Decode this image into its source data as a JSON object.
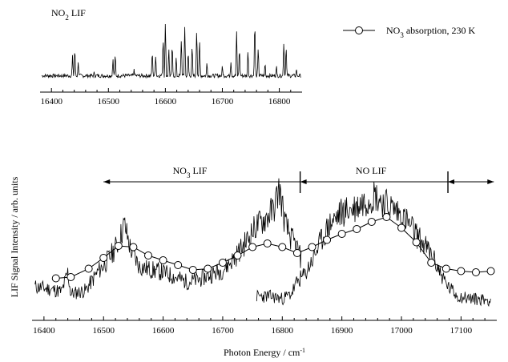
{
  "chart_data": [
    {
      "type": "line",
      "title": "",
      "panel_label_main": "NO",
      "panel_label_sub": "2",
      "panel_label_rest": " LIF",
      "xlim": [
        16380,
        16840
      ],
      "x_ticks": [
        16400,
        16500,
        16600,
        16700,
        16800
      ],
      "ylim": [
        0,
        1
      ],
      "grid": false,
      "series": [
        {
          "name": "",
          "peaks": [
            [
              16413,
              0.1
            ],
            [
              16437,
              0.4
            ],
            [
              16441,
              0.55
            ],
            [
              16447,
              0.3
            ],
            [
              16475,
              0.15
            ],
            [
              16508,
              0.35
            ],
            [
              16512,
              0.45
            ],
            [
              16545,
              0.18
            ],
            [
              16577,
              0.5
            ],
            [
              16583,
              0.42
            ],
            [
              16596,
              0.72
            ],
            [
              16600,
              0.95
            ],
            [
              16606,
              0.55
            ],
            [
              16612,
              0.62
            ],
            [
              16619,
              0.4
            ],
            [
              16628,
              0.7
            ],
            [
              16634,
              0.9
            ],
            [
              16640,
              0.5
            ],
            [
              16647,
              0.6
            ],
            [
              16655,
              0.85
            ],
            [
              16660,
              0.68
            ],
            [
              16673,
              0.3
            ],
            [
              16700,
              0.25
            ],
            [
              16715,
              0.3
            ],
            [
              16725,
              0.78
            ],
            [
              16730,
              0.55
            ],
            [
              16745,
              0.5
            ],
            [
              16757,
              1.0
            ],
            [
              16763,
              0.55
            ],
            [
              16775,
              0.3
            ],
            [
              16795,
              0.25
            ],
            [
              16808,
              0.65
            ],
            [
              16812,
              0.58
            ],
            [
              16830,
              0.2
            ]
          ]
        }
      ]
    },
    {
      "type": "line",
      "title": "",
      "xlabel": "Photon Energy / cm",
      "xlabel_sup": "-1",
      "ylabel": "LIF Signal Intensity / arb. units",
      "xlim": [
        16380,
        17160
      ],
      "x_ticks": [
        16400,
        16500,
        16600,
        16700,
        16800,
        16900,
        17000,
        17100
      ],
      "ylim": [
        0,
        1
      ],
      "grid": false,
      "legend": {
        "position": "top-right",
        "label_main": "NO",
        "label_sub": "3",
        "label_rest": " absorption, 230 K"
      },
      "annotations": {
        "no3_lif_main": "NO",
        "no3_lif_sub": "3",
        "no3_lif_rest": " LIF",
        "no3_lif_range": [
          16500,
          16830
        ],
        "no_lif": "NO LIF",
        "no_lif_range": [
          16830,
          17078
        ],
        "third_range": [
          17078,
          17155
        ]
      },
      "series": [
        {
          "name": "",
          "points": [
            [
              16385,
              0.18
            ],
            [
              16410,
              0.16
            ],
            [
              16430,
              0.14
            ],
            [
              16440,
              0.3
            ],
            [
              16445,
              0.12
            ],
            [
              16470,
              0.15
            ],
            [
              16490,
              0.3
            ],
            [
              16510,
              0.42
            ],
            [
              16525,
              0.55
            ],
            [
              16535,
              0.7
            ],
            [
              16545,
              0.5
            ],
            [
              16560,
              0.35
            ],
            [
              16580,
              0.32
            ],
            [
              16600,
              0.3
            ],
            [
              16620,
              0.26
            ],
            [
              16640,
              0.22
            ],
            [
              16660,
              0.24
            ],
            [
              16680,
              0.28
            ],
            [
              16700,
              0.32
            ],
            [
              16720,
              0.42
            ],
            [
              16740,
              0.56
            ],
            [
              16755,
              0.68
            ],
            [
              16770,
              0.74
            ],
            [
              16785,
              0.82
            ],
            [
              16795,
              1.0
            ],
            [
              16805,
              0.7
            ],
            [
              16815,
              0.58
            ],
            [
              16825,
              0.5
            ],
            [
              16832,
              0.4
            ]
          ]
        },
        {
          "name": "",
          "points": [
            [
              16757,
              0.1
            ],
            [
              16780,
              0.1
            ],
            [
              16800,
              0.08
            ],
            [
              16815,
              0.12
            ],
            [
              16825,
              0.22
            ],
            [
              16838,
              0.28
            ],
            [
              16850,
              0.4
            ],
            [
              16865,
              0.56
            ],
            [
              16880,
              0.7
            ],
            [
              16900,
              0.8
            ],
            [
              16920,
              0.83
            ],
            [
              16940,
              0.9
            ],
            [
              16955,
              0.95
            ],
            [
              16970,
              0.88
            ],
            [
              16990,
              0.82
            ],
            [
              17010,
              0.72
            ],
            [
              17030,
              0.58
            ],
            [
              17050,
              0.45
            ],
            [
              17065,
              0.3
            ],
            [
              17078,
              0.18
            ],
            [
              17095,
              0.1
            ],
            [
              17120,
              0.08
            ],
            [
              17150,
              0.07
            ]
          ]
        },
        {
          "name": "NO3 absorption, 230 K",
          "points": [
            [
              16420,
              0.25
            ],
            [
              16445,
              0.26
            ],
            [
              16475,
              0.33
            ],
            [
              16500,
              0.42
            ],
            [
              16525,
              0.52
            ],
            [
              16550,
              0.51
            ],
            [
              16575,
              0.44
            ],
            [
              16600,
              0.4
            ],
            [
              16625,
              0.36
            ],
            [
              16650,
              0.32
            ],
            [
              16675,
              0.33
            ],
            [
              16700,
              0.38
            ],
            [
              16725,
              0.44
            ],
            [
              16750,
              0.51
            ],
            [
              16775,
              0.54
            ],
            [
              16800,
              0.51
            ],
            [
              16825,
              0.46
            ],
            [
              16850,
              0.51
            ],
            [
              16875,
              0.57
            ],
            [
              16900,
              0.62
            ],
            [
              16925,
              0.66
            ],
            [
              16950,
              0.72
            ],
            [
              16975,
              0.76
            ],
            [
              17000,
              0.67
            ],
            [
              17025,
              0.55
            ],
            [
              17050,
              0.38
            ],
            [
              17075,
              0.33
            ],
            [
              17100,
              0.31
            ],
            [
              17125,
              0.3
            ],
            [
              17150,
              0.31
            ]
          ]
        }
      ]
    }
  ]
}
